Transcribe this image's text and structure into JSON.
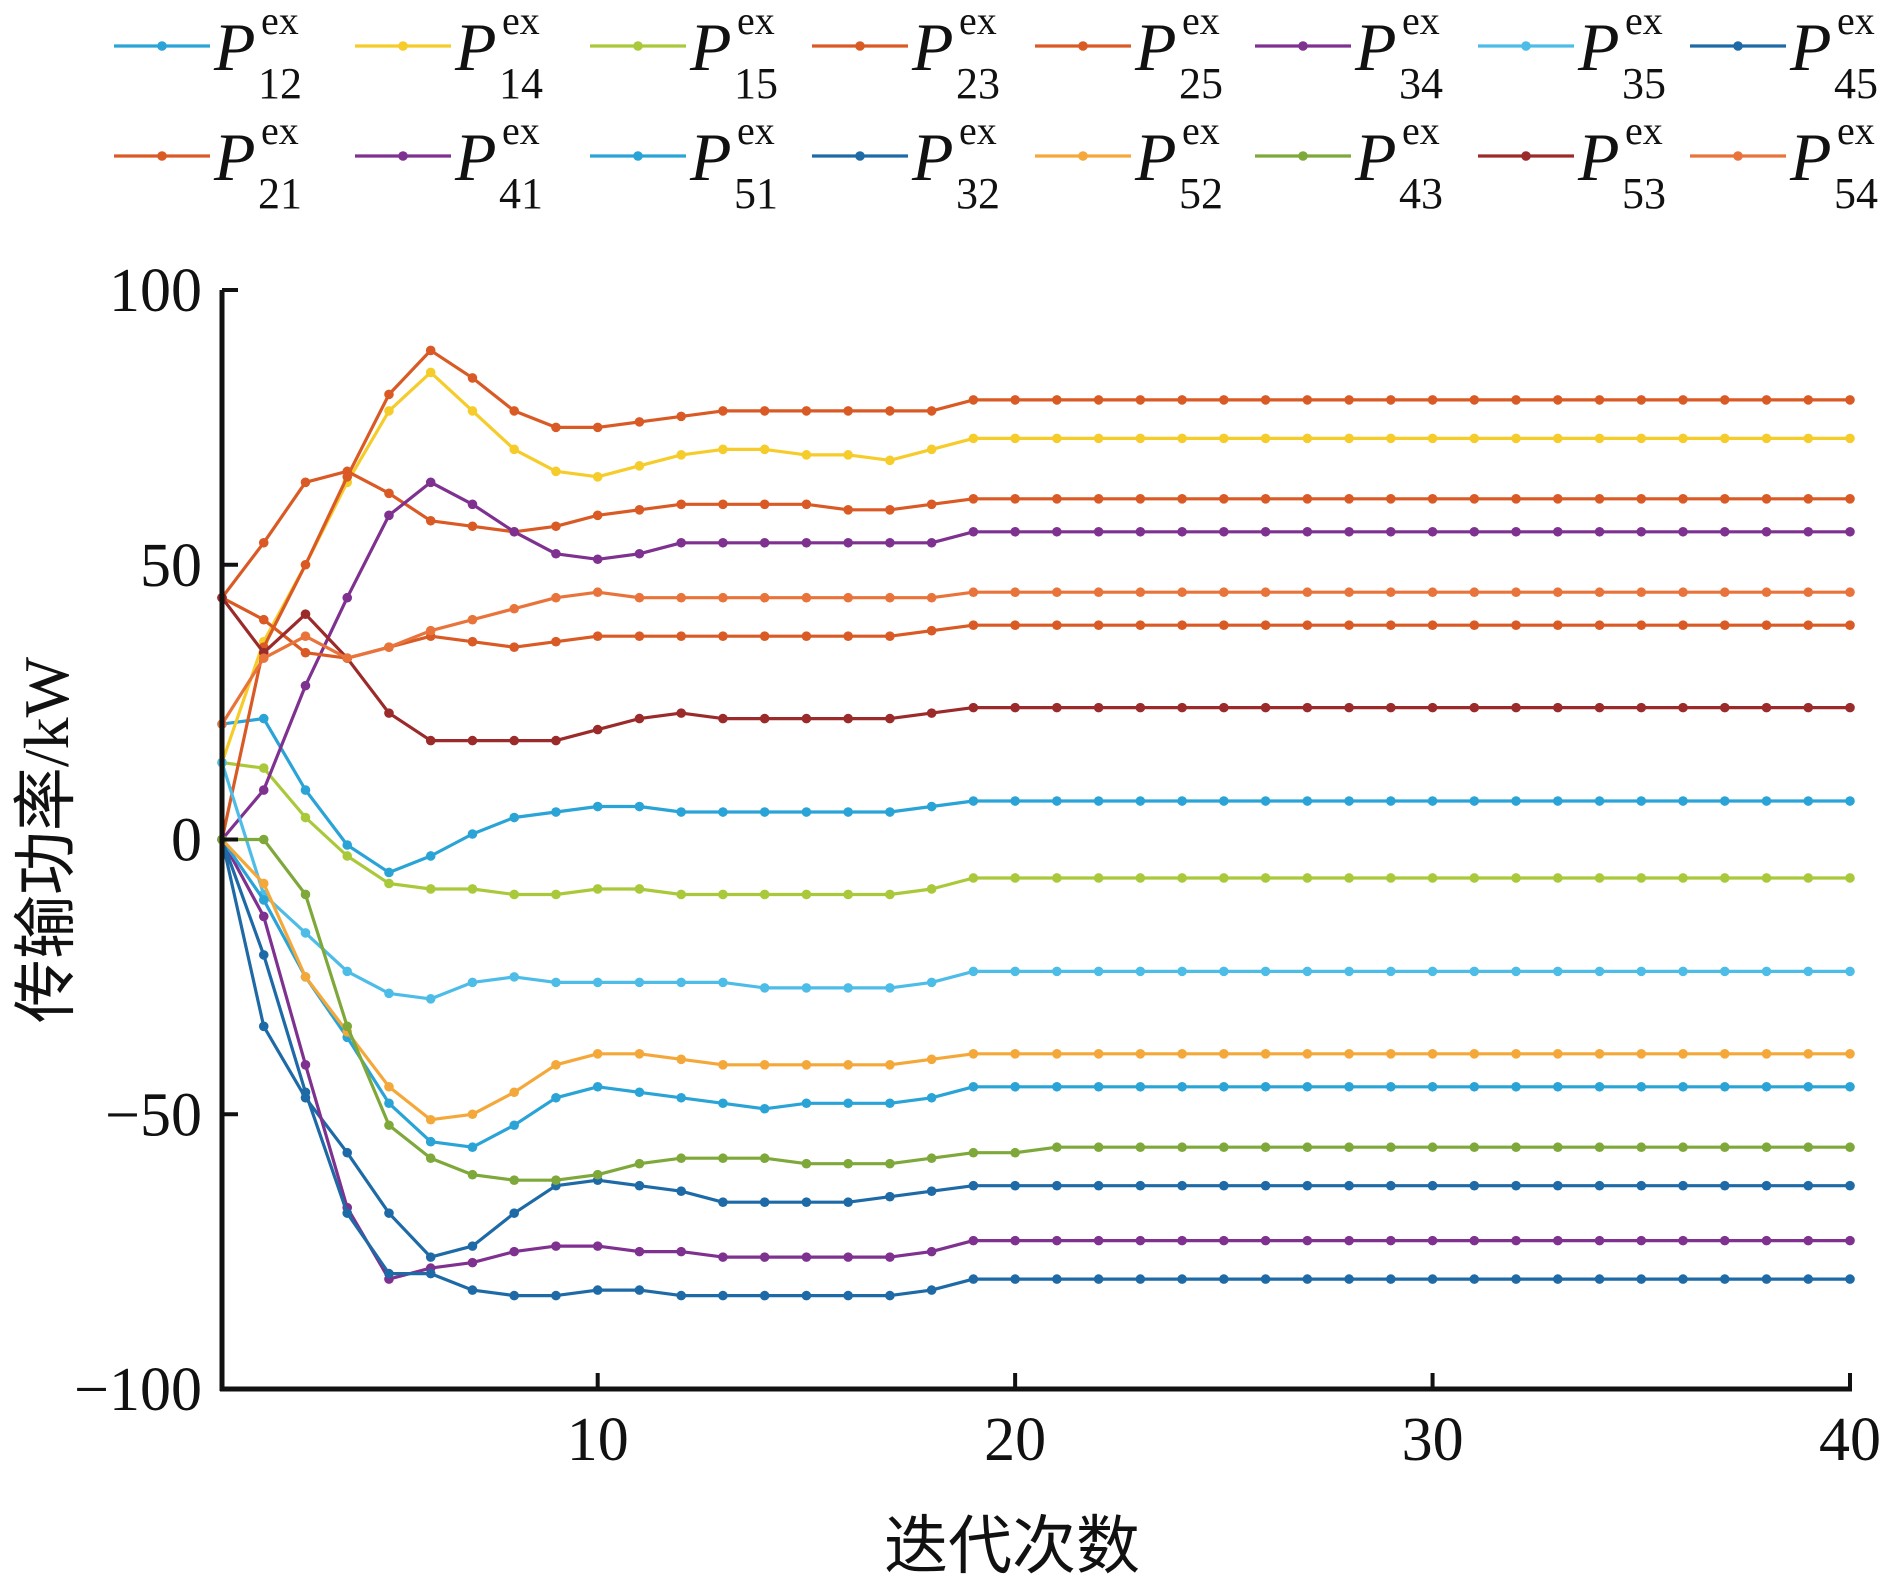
{
  "chart_data": {
    "type": "line",
    "xlabel": "迭代次数",
    "ylabel": "传输功率/kW",
    "xlim": [
      1,
      40
    ],
    "ylim": [
      -100,
      100
    ],
    "xticks": [
      10,
      20,
      30,
      40
    ],
    "yticks": [
      -100,
      -50,
      0,
      50,
      100
    ],
    "ytick_labels": [
      "−100",
      "−50",
      "0",
      "50",
      "100"
    ],
    "legend_position": "top",
    "legend_symbol": "P",
    "legend_superscript": "ex",
    "grid": false,
    "x": [
      1,
      2,
      3,
      4,
      5,
      6,
      7,
      8,
      9,
      10,
      11,
      12,
      13,
      14,
      15,
      16,
      17,
      18,
      19,
      20,
      21,
      22,
      23,
      24,
      25,
      26,
      27,
      28,
      29,
      30,
      31,
      32,
      33,
      34,
      35,
      36,
      37,
      38,
      39,
      40
    ],
    "series": [
      {
        "name": "12",
        "color": "#2aa3d6",
        "values": [
          21,
          22,
          9,
          -1,
          -6,
          -3,
          1,
          4,
          5,
          6,
          6,
          5,
          5,
          5,
          5,
          5,
          5,
          6,
          7,
          7,
          7,
          7,
          7,
          7,
          7,
          7,
          7,
          7,
          7,
          7,
          7,
          7,
          7,
          7,
          7,
          7,
          7,
          7,
          7,
          7
        ]
      },
      {
        "name": "14",
        "color": "#f5cc2a",
        "values": [
          14,
          36,
          50,
          65,
          78,
          85,
          78,
          71,
          67,
          66,
          68,
          70,
          71,
          71,
          70,
          70,
          69,
          71,
          73,
          73,
          73,
          73,
          73,
          73,
          73,
          73,
          73,
          73,
          73,
          73,
          73,
          73,
          73,
          73,
          73,
          73,
          73,
          73,
          73,
          73
        ]
      },
      {
        "name": "15",
        "color": "#a9c93b",
        "values": [
          14,
          13,
          4,
          -3,
          -8,
          -9,
          -9,
          -10,
          -10,
          -9,
          -9,
          -10,
          -10,
          -10,
          -10,
          -10,
          -10,
          -9,
          -7,
          -7,
          -7,
          -7,
          -7,
          -7,
          -7,
          -7,
          -7,
          -7,
          -7,
          -7,
          -7,
          -7,
          -7,
          -7,
          -7,
          -7,
          -7,
          -7,
          -7,
          -7
        ]
      },
      {
        "name": "23",
        "color": "#d95a24",
        "values": [
          44,
          54,
          65,
          67,
          63,
          58,
          57,
          56,
          57,
          59,
          60,
          61,
          61,
          61,
          61,
          60,
          60,
          61,
          62,
          62,
          62,
          62,
          62,
          62,
          62,
          62,
          62,
          62,
          62,
          62,
          62,
          62,
          62,
          62,
          62,
          62,
          62,
          62,
          62,
          62
        ]
      },
      {
        "name": "25",
        "color": "#d95a24",
        "values": [
          0,
          35,
          50,
          66,
          81,
          89,
          84,
          78,
          75,
          75,
          76,
          77,
          78,
          78,
          78,
          78,
          78,
          78,
          80,
          80,
          80,
          80,
          80,
          80,
          80,
          80,
          80,
          80,
          80,
          80,
          80,
          80,
          80,
          80,
          80,
          80,
          80,
          80,
          80,
          80
        ]
      },
      {
        "name": "34",
        "color": "#7f3190",
        "values": [
          0,
          9,
          28,
          44,
          59,
          65,
          61,
          56,
          52,
          51,
          52,
          54,
          54,
          54,
          54,
          54,
          54,
          54,
          56,
          56,
          56,
          56,
          56,
          56,
          56,
          56,
          56,
          56,
          56,
          56,
          56,
          56,
          56,
          56,
          56,
          56,
          56,
          56,
          56,
          56
        ]
      },
      {
        "name": "35",
        "color": "#4dbde8",
        "values": [
          14,
          -10,
          -17,
          -24,
          -28,
          -29,
          -26,
          -25,
          -26,
          -26,
          -26,
          -26,
          -26,
          -27,
          -27,
          -27,
          -27,
          -26,
          -24,
          -24,
          -24,
          -24,
          -24,
          -24,
          -24,
          -24,
          -24,
          -24,
          -24,
          -24,
          -24,
          -24,
          -24,
          -24,
          -24,
          -24,
          -24,
          -24,
          -24,
          -24
        ]
      },
      {
        "name": "45",
        "color": "#1e6aa6",
        "values": [
          0,
          -34,
          -47,
          -57,
          -68,
          -76,
          -74,
          -68,
          -63,
          -62,
          -63,
          -64,
          -66,
          -66,
          -66,
          -66,
          -65,
          -64,
          -63,
          -63,
          -63,
          -63,
          -63,
          -63,
          -63,
          -63,
          -63,
          -63,
          -63,
          -63,
          -63,
          -63,
          -63,
          -63,
          -63,
          -63,
          -63,
          -63,
          -63,
          -63
        ]
      },
      {
        "name": "21",
        "color": "#d95a24",
        "values": [
          44,
          40,
          34,
          33,
          35,
          37,
          36,
          35,
          36,
          37,
          37,
          37,
          37,
          37,
          37,
          37,
          37,
          38,
          39,
          39,
          39,
          39,
          39,
          39,
          39,
          39,
          39,
          39,
          39,
          39,
          39,
          39,
          39,
          39,
          39,
          39,
          39,
          39,
          39,
          39
        ]
      },
      {
        "name": "41",
        "color": "#7f3190",
        "values": [
          0,
          -14,
          -41,
          -67,
          -80,
          -78,
          -77,
          -75,
          -74,
          -74,
          -75,
          -75,
          -76,
          -76,
          -76,
          -76,
          -76,
          -75,
          -73,
          -73,
          -73,
          -73,
          -73,
          -73,
          -73,
          -73,
          -73,
          -73,
          -73,
          -73,
          -73,
          -73,
          -73,
          -73,
          -73,
          -73,
          -73,
          -73,
          -73,
          -73
        ]
      },
      {
        "name": "51",
        "color": "#2aa3d6",
        "values": [
          0,
          -11,
          -25,
          -36,
          -48,
          -55,
          -56,
          -52,
          -47,
          -45,
          -46,
          -47,
          -48,
          -49,
          -48,
          -48,
          -48,
          -47,
          -45,
          -45,
          -45,
          -45,
          -45,
          -45,
          -45,
          -45,
          -45,
          -45,
          -45,
          -45,
          -45,
          -45,
          -45,
          -45,
          -45,
          -45,
          -45,
          -45,
          -45,
          -45
        ]
      },
      {
        "name": "32",
        "color": "#1e6aa6",
        "values": [
          0,
          -21,
          -46,
          -68,
          -79,
          -79,
          -82,
          -83,
          -83,
          -82,
          -82,
          -83,
          -83,
          -83,
          -83,
          -83,
          -83,
          -82,
          -80,
          -80,
          -80,
          -80,
          -80,
          -80,
          -80,
          -80,
          -80,
          -80,
          -80,
          -80,
          -80,
          -80,
          -80,
          -80,
          -80,
          -80,
          -80,
          -80,
          -80,
          -80
        ]
      },
      {
        "name": "52",
        "color": "#f4a83a",
        "values": [
          0,
          -8,
          -25,
          -35,
          -45,
          -51,
          -50,
          -46,
          -41,
          -39,
          -39,
          -40,
          -41,
          -41,
          -41,
          -41,
          -41,
          -40,
          -39,
          -39,
          -39,
          -39,
          -39,
          -39,
          -39,
          -39,
          -39,
          -39,
          -39,
          -39,
          -39,
          -39,
          -39,
          -39,
          -39,
          -39,
          -39,
          -39,
          -39,
          -39
        ]
      },
      {
        "name": "43",
        "color": "#7ea83a",
        "values": [
          0,
          0,
          -10,
          -34,
          -52,
          -58,
          -61,
          -62,
          -62,
          -61,
          -59,
          -58,
          -58,
          -58,
          -59,
          -59,
          -59,
          -58,
          -57,
          -57,
          -56,
          -56,
          -56,
          -56,
          -56,
          -56,
          -56,
          -56,
          -56,
          -56,
          -56,
          -56,
          -56,
          -56,
          -56,
          -56,
          -56,
          -56,
          -56,
          -56
        ]
      },
      {
        "name": "53",
        "color": "#9b2a2a",
        "values": [
          44,
          34,
          41,
          33,
          23,
          18,
          18,
          18,
          18,
          20,
          22,
          23,
          22,
          22,
          22,
          22,
          22,
          23,
          24,
          24,
          24,
          24,
          24,
          24,
          24,
          24,
          24,
          24,
          24,
          24,
          24,
          24,
          24,
          24,
          24,
          24,
          24,
          24,
          24,
          24
        ]
      },
      {
        "name": "54",
        "color": "#e8743b",
        "values": [
          21,
          33,
          37,
          33,
          35,
          38,
          40,
          42,
          44,
          45,
          44,
          44,
          44,
          44,
          44,
          44,
          44,
          44,
          45,
          45,
          45,
          45,
          45,
          45,
          45,
          45,
          45,
          45,
          45,
          45,
          45,
          45,
          45,
          45,
          45,
          45,
          45,
          45,
          45,
          45
        ]
      }
    ]
  }
}
